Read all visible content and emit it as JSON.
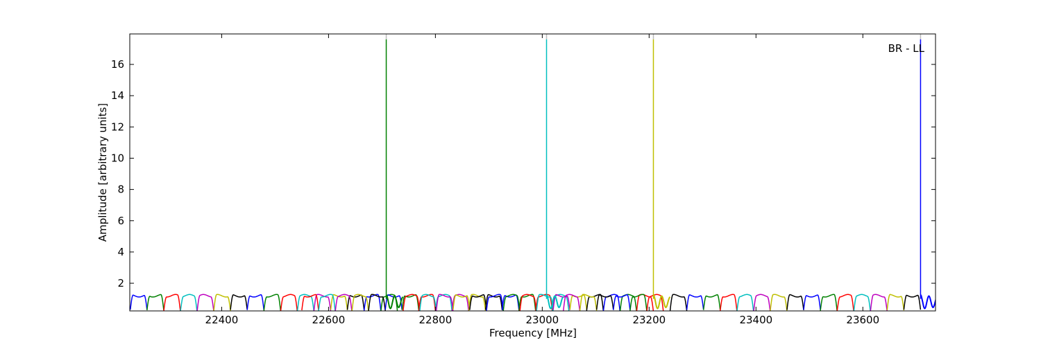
{
  "chart_data": {
    "type": "line",
    "title": "",
    "annotation": "BR - LL",
    "xlabel": "Frequency [MHz]",
    "ylabel": "Amplitude [arbitrary units]",
    "xlim": [
      22228,
      23736
    ],
    "ylim": [
      0.23,
      17.95
    ],
    "xticks": [
      22400,
      22600,
      22800,
      23000,
      23200,
      23400,
      23600
    ],
    "yticks": [
      2,
      4,
      6,
      8,
      10,
      12,
      14,
      16
    ],
    "grid": false,
    "color_cycle": [
      "#0000ff",
      "#008000",
      "#ff0000",
      "#00bfbf",
      "#bf00bf",
      "#bfbf00",
      "#000000"
    ],
    "subband_width_mhz": 31.25,
    "band_peak_amplitude": 1.3,
    "band_groups": [
      {
        "start": 22229,
        "first_color": 0,
        "count": 16,
        "spike": false
      },
      {
        "start": 22550,
        "first_color": 2,
        "count": 16,
        "spike": false
      },
      {
        "start": 22708,
        "first_color": 1,
        "count": 16,
        "spike": true,
        "spike_amplitude": 17.6
      },
      {
        "start": 23008,
        "first_color": 3,
        "count": 7,
        "spike": true,
        "spike_amplitude": 17.6
      },
      {
        "start": 23208,
        "first_color": 5,
        "count": 16,
        "spike": true,
        "spike_amplitude": 17.6
      },
      {
        "start": 23708,
        "first_color": 0,
        "count": 1,
        "spike": true,
        "spike_amplitude": 17.6
      }
    ]
  }
}
